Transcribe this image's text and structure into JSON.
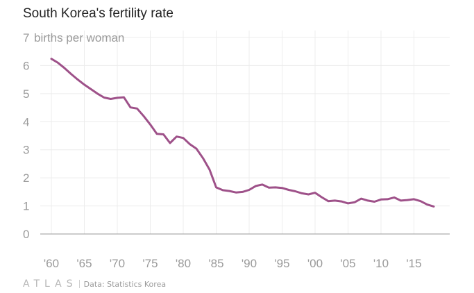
{
  "title": "South Korea's fertility rate",
  "unit_label": "births per woman",
  "footer": {
    "logo": "ATLAS",
    "source": "Data: Statistics Korea"
  },
  "colors": {
    "line": "#9e5189",
    "grid": "#ececec",
    "axis": "#9a9a9a",
    "tick_text": "#9a9a9a"
  },
  "chart_data": {
    "type": "line",
    "title": "South Korea's fertility rate",
    "xlabel": "",
    "ylabel": "births per woman",
    "xlim": [
      1960,
      2018
    ],
    "ylim": [
      0,
      7
    ],
    "grid": true,
    "x_ticks": [
      1960,
      1965,
      1970,
      1975,
      1980,
      1985,
      1990,
      1995,
      2000,
      2005,
      2010,
      2015
    ],
    "x_tick_labels": [
      "'60",
      "'65",
      "'70",
      "'75",
      "'80",
      "'85",
      "'90",
      "'95",
      "'00",
      "'05",
      "'10",
      "'15"
    ],
    "y_ticks": [
      0,
      1,
      2,
      3,
      4,
      5,
      6,
      7
    ],
    "y_tick_labels": [
      "0",
      "1",
      "2",
      "3",
      "4",
      "5",
      "6",
      "7"
    ],
    "x": [
      1960,
      1961,
      1962,
      1963,
      1964,
      1965,
      1966,
      1967,
      1968,
      1969,
      1970,
      1971,
      1972,
      1973,
      1974,
      1975,
      1976,
      1977,
      1978,
      1979,
      1980,
      1981,
      1982,
      1983,
      1984,
      1985,
      1986,
      1987,
      1988,
      1989,
      1990,
      1991,
      1992,
      1993,
      1994,
      1995,
      1996,
      1997,
      1998,
      1999,
      2000,
      2001,
      2002,
      2003,
      2004,
      2005,
      2006,
      2007,
      2008,
      2009,
      2010,
      2011,
      2012,
      2013,
      2014,
      2015,
      2016,
      2017,
      2018
    ],
    "y": [
      6.24,
      6.1,
      5.91,
      5.7,
      5.5,
      5.32,
      5.16,
      5.0,
      4.86,
      4.81,
      4.85,
      4.87,
      4.51,
      4.47,
      4.2,
      3.9,
      3.57,
      3.55,
      3.24,
      3.47,
      3.42,
      3.2,
      3.04,
      2.7,
      2.29,
      1.66,
      1.56,
      1.53,
      1.48,
      1.5,
      1.57,
      1.71,
      1.76,
      1.65,
      1.66,
      1.64,
      1.57,
      1.52,
      1.45,
      1.41,
      1.47,
      1.31,
      1.17,
      1.19,
      1.16,
      1.09,
      1.13,
      1.26,
      1.19,
      1.15,
      1.23,
      1.24,
      1.3,
      1.19,
      1.21,
      1.24,
      1.17,
      1.05,
      0.98
    ],
    "series": [
      {
        "values_key": "y"
      }
    ]
  }
}
